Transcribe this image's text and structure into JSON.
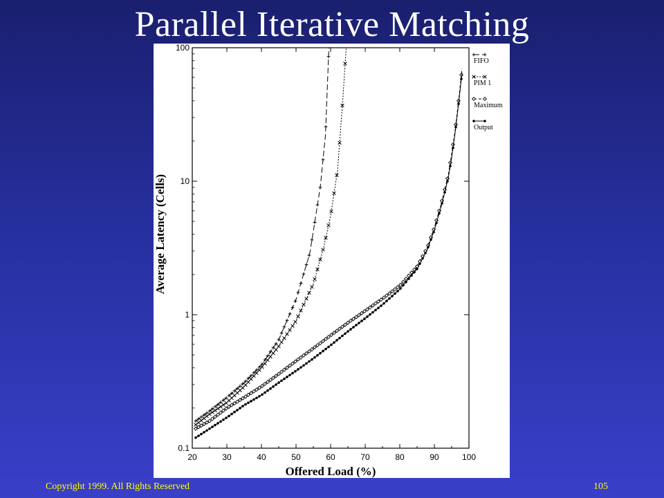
{
  "slide": {
    "title": "Parallel Iterative Matching",
    "copyright": "Copyright 1999. All Rights Reserved",
    "page_number": "105"
  },
  "colors": {
    "background_top": "#1a1f6e",
    "background_bottom": "#3a3fc8",
    "title": "#ffffff",
    "footer": "#ffff00",
    "plot": "#000000"
  },
  "chart_data": {
    "type": "line",
    "title": "",
    "xlabel": "Offered Load (%)",
    "ylabel": "Average Latency (Cells)",
    "xlim": [
      20,
      100
    ],
    "ylim": [
      0.1,
      100
    ],
    "yscale": "log",
    "grid": false,
    "legend_position": "top-right",
    "x_ticks": [
      {
        "value": 20,
        "label": "20"
      },
      {
        "value": 30,
        "label": "30"
      },
      {
        "value": 40,
        "label": "40"
      },
      {
        "value": 50,
        "label": "50"
      },
      {
        "value": 60,
        "label": "60"
      },
      {
        "value": 70,
        "label": "70"
      },
      {
        "value": 80,
        "label": "80"
      },
      {
        "value": 90,
        "label": "90"
      },
      {
        "value": 100,
        "label": "100"
      }
    ],
    "y_ticks": [
      {
        "value": 0.1,
        "label": "0.1"
      },
      {
        "value": 1,
        "label": "1"
      },
      {
        "value": 10,
        "label": "10"
      },
      {
        "value": 100,
        "label": "100"
      }
    ],
    "series": [
      {
        "name": "FIFO",
        "dash": "8,4",
        "marker": "plus",
        "x": [
          21,
          25,
          30,
          35,
          40,
          45,
          50,
          54,
          57,
          58.5,
          59.5
        ],
        "y": [
          0.16,
          0.19,
          0.24,
          0.31,
          0.42,
          0.65,
          1.3,
          2.9,
          9,
          22,
          100
        ]
      },
      {
        "name": "PIM 1",
        "dash": "2,2",
        "marker": "x",
        "x": [
          21,
          25,
          30,
          35,
          40,
          45,
          50,
          55,
          58,
          60,
          62,
          63.5,
          64.5
        ],
        "y": [
          0.15,
          0.18,
          0.22,
          0.29,
          0.4,
          0.58,
          0.9,
          1.7,
          3.2,
          5.5,
          12,
          40,
          100
        ]
      },
      {
        "name": "Maximum",
        "dash": "4,3",
        "marker": "diamond",
        "x": [
          21,
          25,
          30,
          35,
          40,
          45,
          50,
          55,
          60,
          65,
          70,
          75,
          80,
          85,
          88,
          90,
          92,
          94,
          95,
          96,
          97,
          98
        ],
        "y": [
          0.14,
          0.16,
          0.2,
          0.24,
          0.29,
          0.36,
          0.45,
          0.56,
          0.7,
          0.87,
          1.07,
          1.32,
          1.65,
          2.3,
          3.2,
          4.5,
          6.8,
          11,
          16,
          24,
          40,
          70
        ]
      },
      {
        "name": "Output",
        "dash": "",
        "marker": "dot",
        "x": [
          21,
          25,
          30,
          35,
          40,
          45,
          50,
          55,
          60,
          65,
          70,
          75,
          80,
          85,
          88,
          90,
          92,
          94,
          95,
          96,
          97,
          98
        ],
        "y": [
          0.12,
          0.14,
          0.17,
          0.21,
          0.25,
          0.31,
          0.38,
          0.47,
          0.59,
          0.75,
          0.94,
          1.19,
          1.55,
          2.2,
          3.1,
          4.3,
          6.5,
          10.5,
          15,
          23,
          38,
          65
        ]
      }
    ]
  }
}
